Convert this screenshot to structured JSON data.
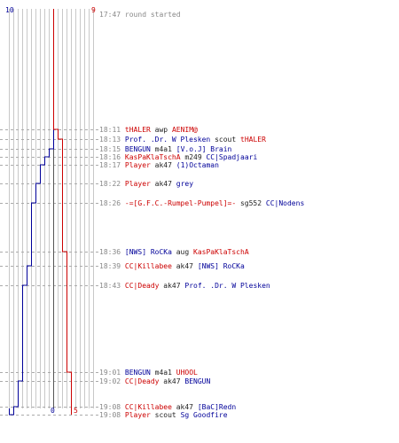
{
  "colors": {
    "red": "#cc0000",
    "blue": "#000099",
    "grey": "#888888"
  },
  "scores": {
    "blue_start": "10",
    "red_start": "9",
    "blue_end": "0",
    "red_end": "5"
  },
  "start": {
    "time": "17:47",
    "message": "round started"
  },
  "events": [
    {
      "time": "18:11",
      "killer": "tHALER",
      "kc": "red",
      "weapon": "awp",
      "victim": "AENIM@",
      "vc": "red"
    },
    {
      "time": "18:13",
      "killer": "Prof. .Dr. W Plesken",
      "kc": "blue",
      "weapon": "scout",
      "victim": "tHALER",
      "vc": "red"
    },
    {
      "time": "18:15",
      "killer": "BENGUN",
      "kc": "blue",
      "weapon": "m4a1",
      "victim": "[V.o.J] Brain",
      "vc": "blue"
    },
    {
      "time": "18:16",
      "killer": "KasPaKlaTschA",
      "kc": "red",
      "weapon": "m249",
      "victim": "CC|Spadjaari",
      "vc": "blue"
    },
    {
      "time": "18:17",
      "killer": "Player",
      "kc": "red",
      "weapon": "ak47",
      "victim": "(1)Octaman",
      "vc": "blue"
    },
    {
      "time": "18:22",
      "killer": "Player",
      "kc": "red",
      "weapon": "ak47",
      "victim": "grey",
      "vc": "blue"
    },
    {
      "time": "18:26",
      "killer": "-=[G.F.C.-Rumpel-Pumpel]=-",
      "kc": "red",
      "weapon": "sg552",
      "victim": "CC|Nodens",
      "vc": "blue"
    },
    {
      "time": "18:36",
      "killer": "[NWS] RoCKa",
      "kc": "blue",
      "weapon": "aug",
      "victim": "KasPaKlaTschA",
      "vc": "red"
    },
    {
      "time": "18:39",
      "killer": "CC|Killabee",
      "kc": "red",
      "weapon": "ak47",
      "victim": "[NWS] RoCKa",
      "vc": "blue"
    },
    {
      "time": "18:43",
      "killer": "CC|Deady",
      "kc": "red",
      "weapon": "ak47",
      "victim": "Prof. .Dr. W Plesken",
      "vc": "blue"
    },
    {
      "time": "19:01",
      "killer": "BENGUN",
      "kc": "blue",
      "weapon": "m4a1",
      "victim": "UHOOL",
      "vc": "red"
    },
    {
      "time": "19:02",
      "killer": "CC|Deady",
      "kc": "red",
      "weapon": "ak47",
      "victim": "BENGUN",
      "vc": "blue"
    },
    {
      "time": "19:08",
      "killer": "CC|Killabee",
      "kc": "red",
      "weapon": "ak47",
      "victim": "[BaC]Redn",
      "vc": "blue"
    },
    {
      "time": "19:08",
      "killer": "Player",
      "kc": "red",
      "weapon": "scout",
      "victim": "Sg Goodfire",
      "vc": "blue"
    }
  ],
  "chart_data": {
    "type": "line",
    "x": [
      "17:47",
      "18:11",
      "18:13",
      "18:15",
      "18:16",
      "18:17",
      "18:22",
      "18:26",
      "18:36",
      "18:39",
      "18:43",
      "19:01",
      "19:02",
      "19:08",
      "19:08"
    ],
    "series": [
      {
        "values": [
          10,
          10,
          10,
          9,
          8,
          7,
          6,
          5,
          5,
          4,
          3,
          3,
          2,
          1,
          0
        ]
      },
      {
        "values": [
          9,
          8,
          7,
          7,
          7,
          7,
          7,
          7,
          6,
          6,
          6,
          5,
          5,
          5,
          5
        ]
      }
    ],
    "ylim": [
      0,
      10
    ]
  }
}
